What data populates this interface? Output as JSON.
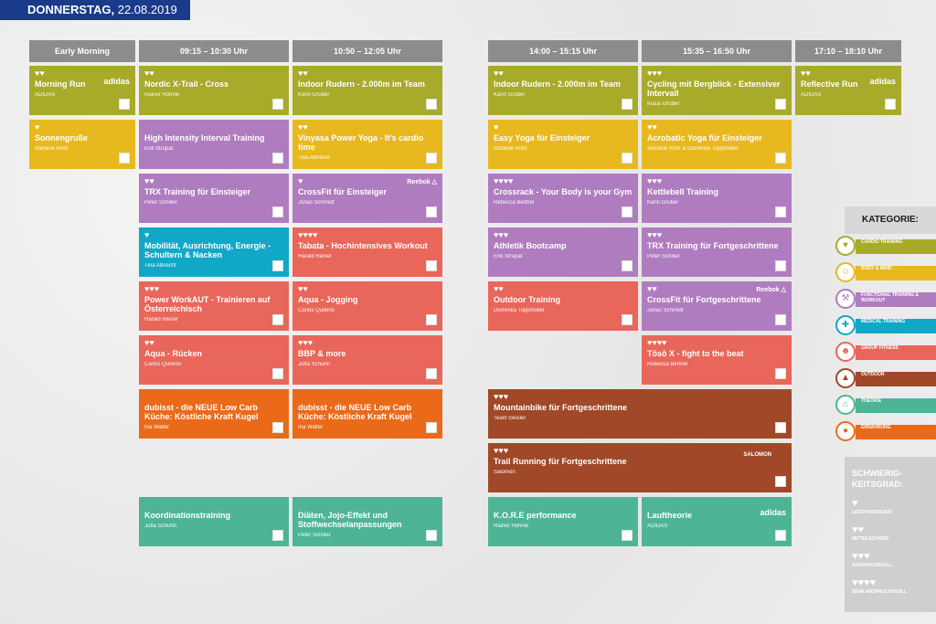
{
  "header": {
    "day": "DONNERSTAG,",
    "date": " 22.08.2019"
  },
  "columns": [
    "Early Morning",
    "09:15 – 10:30 Uhr",
    "10:50 – 12:05 Uhr",
    "14:00 – 15:15 Uhr",
    "15:35 – 16:50 Uhr",
    "17:10 – 18:10 Uhr"
  ],
  "cards": [
    {
      "hearts": "♥♥",
      "title": "Morning Run",
      "trainer": "ADIDAS",
      "brand": "adidas"
    },
    {
      "hearts": "♥",
      "title": "Sonnengruße",
      "trainer": "Stefanie Rohr"
    },
    {
      "hearts": "♥♥",
      "title": "Nordic X-Trail - Cross",
      "trainer": "Rainer Höhnle"
    },
    {
      "hearts": "",
      "title": "High Intensity Interval Training",
      "trainer": "Erik Strupat"
    },
    {
      "hearts": "♥♥",
      "title": "TRX Training für Einsteiger",
      "trainer": "Peter Schiller"
    },
    {
      "hearts": "♥",
      "title": "Mobilität, Ausrichtung, Energie - Schultern & Nacken",
      "trainer": "Tina Albrecht"
    },
    {
      "hearts": "♥♥♥",
      "title": "Power WorkAUT - Trainieren auf Österreichisch",
      "trainer": "Harald Reiner"
    },
    {
      "hearts": "♥♥",
      "title": "Aqua - Rücken",
      "trainer": "Carlos Quiterio"
    },
    {
      "hearts": "",
      "title": "dubisst - die NEUE Low Carb Küche: Köstliche Kraft Kugel",
      "trainer": "Ina Walter"
    },
    {
      "hearts": "",
      "title": "Koordinationstraining",
      "trainer": "Jutta Schuhn"
    },
    {
      "hearts": "♥♥",
      "title": "Indoor Rudern - 2.000m im Team",
      "trainer": "Karin Gruber"
    },
    {
      "hearts": "♥♥",
      "title": "Vinyasa Power Yoga - It's cardio time",
      "trainer": "Tina Albrecht"
    },
    {
      "hearts": "♥",
      "title": "CrossFit für Einsteiger",
      "trainer": "Jonas Schmidt",
      "brand": "Reebok △"
    },
    {
      "hearts": "♥♥♥♥",
      "title": "Tabata - Hochintensives Workout",
      "trainer": "Harald Reiner"
    },
    {
      "hearts": "♥♥",
      "title": "Aqua - Jogging",
      "trainer": "Carlos Quiterio"
    },
    {
      "hearts": "♥♥♥",
      "title": "BBP & more",
      "trainer": "Jutta Schuhn"
    },
    {
      "hearts": "",
      "title": "dubisst - die NEUE Low Carb Küche: Köstliche Kraft Kugel",
      "trainer": "Ina Walter"
    },
    {
      "hearts": "",
      "title": "Diäten, Jojo-Effekt und Stoffwechselanpassungen",
      "trainer": "Peter Schiller"
    },
    {
      "hearts": "♥♥",
      "title": "Indoor Rudern - 2.000m im Team",
      "trainer": "Karin Gruber"
    },
    {
      "hearts": "♥",
      "title": "Easy Yoga für Einsteiger",
      "trainer": "Stefanie Rohr"
    },
    {
      "hearts": "♥♥♥♥",
      "title": "Crossrack - Your Body is your Gym",
      "trainer": "Rebecca Berthel"
    },
    {
      "hearts": "♥♥♥",
      "title": "Athletik Bootcamp",
      "trainer": "Erik Strupat"
    },
    {
      "hearts": "♥♥",
      "title": "Outdoor Training",
      "trainer": "Dominika Toppmöller"
    },
    {
      "hearts": "♥♥♥",
      "title": "Mountainbike für Fortgeschrittene",
      "trainer": "Team Geisler"
    },
    {
      "hearts": "♥♥♥",
      "title": "Trail Running für Fortgeschrittene",
      "trainer": "Salomon",
      "brand": "SALOMON"
    },
    {
      "hearts": "",
      "title": "K.O.R.E performance",
      "trainer": "Rainer Höhnle"
    },
    {
      "hearts": "♥♥♥",
      "title": "Cycling mit Bergblick - Extensiver Intervall",
      "trainer": "Klaus Gruber"
    },
    {
      "hearts": "♥♥",
      "title": "Acrobatic Yoga für Einsteiger",
      "trainer": "Stefanie Rohr & Dominika Toppmöller"
    },
    {
      "hearts": "♥♥♥",
      "title": "Kettlebell Training",
      "trainer": "Karin Gruber"
    },
    {
      "hearts": "♥♥♥",
      "title": "TRX Training für Fortgeschrittene",
      "trainer": "Peter Schiller"
    },
    {
      "hearts": "♥♥",
      "title": "CrossFit für Fortgeschrittene",
      "trainer": "Jonas Schmidt",
      "brand": "Reebok △"
    },
    {
      "hearts": "♥♥♥♥",
      "title": "Tōsō X - fight to the beat",
      "trainer": "Rebecca Berthel"
    },
    {
      "hearts": "",
      "title": "Lauftheorie",
      "trainer": "ADIDAS",
      "brand": "adidas"
    },
    {
      "hearts": "♥♥",
      "title": "Reflective Run",
      "trainer": "ADIDAS",
      "brand": "adidas"
    }
  ],
  "legend": {
    "title": "KATEGORIE:",
    "items": [
      {
        "label": "CARDIO TRAINING",
        "color": "#a8aa2a",
        "icon": "heart-pulse-icon",
        "glyph": "♥"
      },
      {
        "label": "BODY & MIND",
        "color": "#e8b91e",
        "icon": "meditation-icon",
        "glyph": "☺"
      },
      {
        "label": "FUNCTIONAL TRAINING & WORKOUT",
        "color": "#b07cc0",
        "icon": "dumbbell-icon",
        "glyph": "⚒"
      },
      {
        "label": "MEDICAL TRAINING",
        "color": "#11a8c8",
        "icon": "medical-cross-icon",
        "glyph": "✚"
      },
      {
        "label": "GROUP FITNESS",
        "color": "#e8665a",
        "icon": "group-icon",
        "glyph": "☻"
      },
      {
        "label": "OUTDOOR",
        "color": "#a04828",
        "icon": "mountain-icon",
        "glyph": "▲"
      },
      {
        "label": "THEORIE",
        "color": "#4db596",
        "icon": "theory-icon",
        "glyph": "⌂"
      },
      {
        "label": "ERNÄHRUNG",
        "color": "#ea6a1a",
        "icon": "apple-icon",
        "glyph": "●"
      }
    ]
  },
  "difficulty": {
    "title": "SCHWIERIG-KEITSGRAD:",
    "items": [
      {
        "hearts": "♥",
        "label": "LEICHT/MODERAT"
      },
      {
        "hearts": "♥♥",
        "label": "MITTELSCHWER"
      },
      {
        "hearts": "♥♥♥",
        "label": "ANSPRUCHSVOLL"
      },
      {
        "hearts": "♥♥♥♥",
        "label": "SEHR ANSPRUCHSVOLL"
      }
    ]
  }
}
